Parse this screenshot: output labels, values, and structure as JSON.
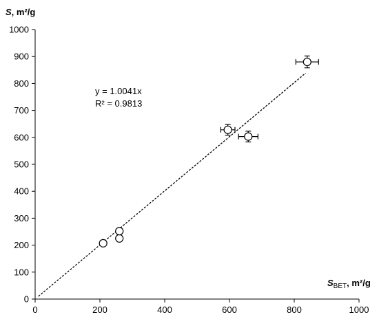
{
  "chart_data": {
    "type": "scatter",
    "xlim": [
      0,
      1000
    ],
    "ylim": [
      0,
      1000
    ],
    "x_ticks": [
      "0",
      "200",
      "400",
      "600",
      "800",
      "1000"
    ],
    "y_ticks": [
      "0",
      "100",
      "200",
      "300",
      "400",
      "500",
      "600",
      "700",
      "800",
      "900",
      "1000"
    ],
    "x_tick_values": [
      0,
      200,
      400,
      600,
      800,
      1000
    ],
    "y_tick_values": [
      0,
      100,
      200,
      300,
      400,
      500,
      600,
      700,
      800,
      900,
      1000
    ],
    "xlabel": {
      "var": "S",
      "sub": "BET",
      "unit": ", m²/g"
    },
    "ylabel": {
      "var": "S",
      "unit": ", m²/g"
    },
    "grid": false,
    "points": [
      {
        "x": 210,
        "y": 207,
        "xerr": 0,
        "yerr": 0
      },
      {
        "x": 260,
        "y": 225,
        "xerr": 0,
        "yerr": 0
      },
      {
        "x": 260,
        "y": 252,
        "xerr": 8,
        "yerr": 8
      },
      {
        "x": 595,
        "y": 628,
        "xerr": 22,
        "yerr": 20
      },
      {
        "x": 658,
        "y": 603,
        "xerr": 30,
        "yerr": 20
      },
      {
        "x": 840,
        "y": 880,
        "xerr": 35,
        "yerr": 22
      }
    ],
    "trendline": {
      "slope": 1.0041,
      "x_from": 10,
      "x_to": 835,
      "style": "dashed"
    },
    "annotations": {
      "equation": "y = 1.0041x",
      "r_squared": "R² = 0.9813"
    }
  }
}
